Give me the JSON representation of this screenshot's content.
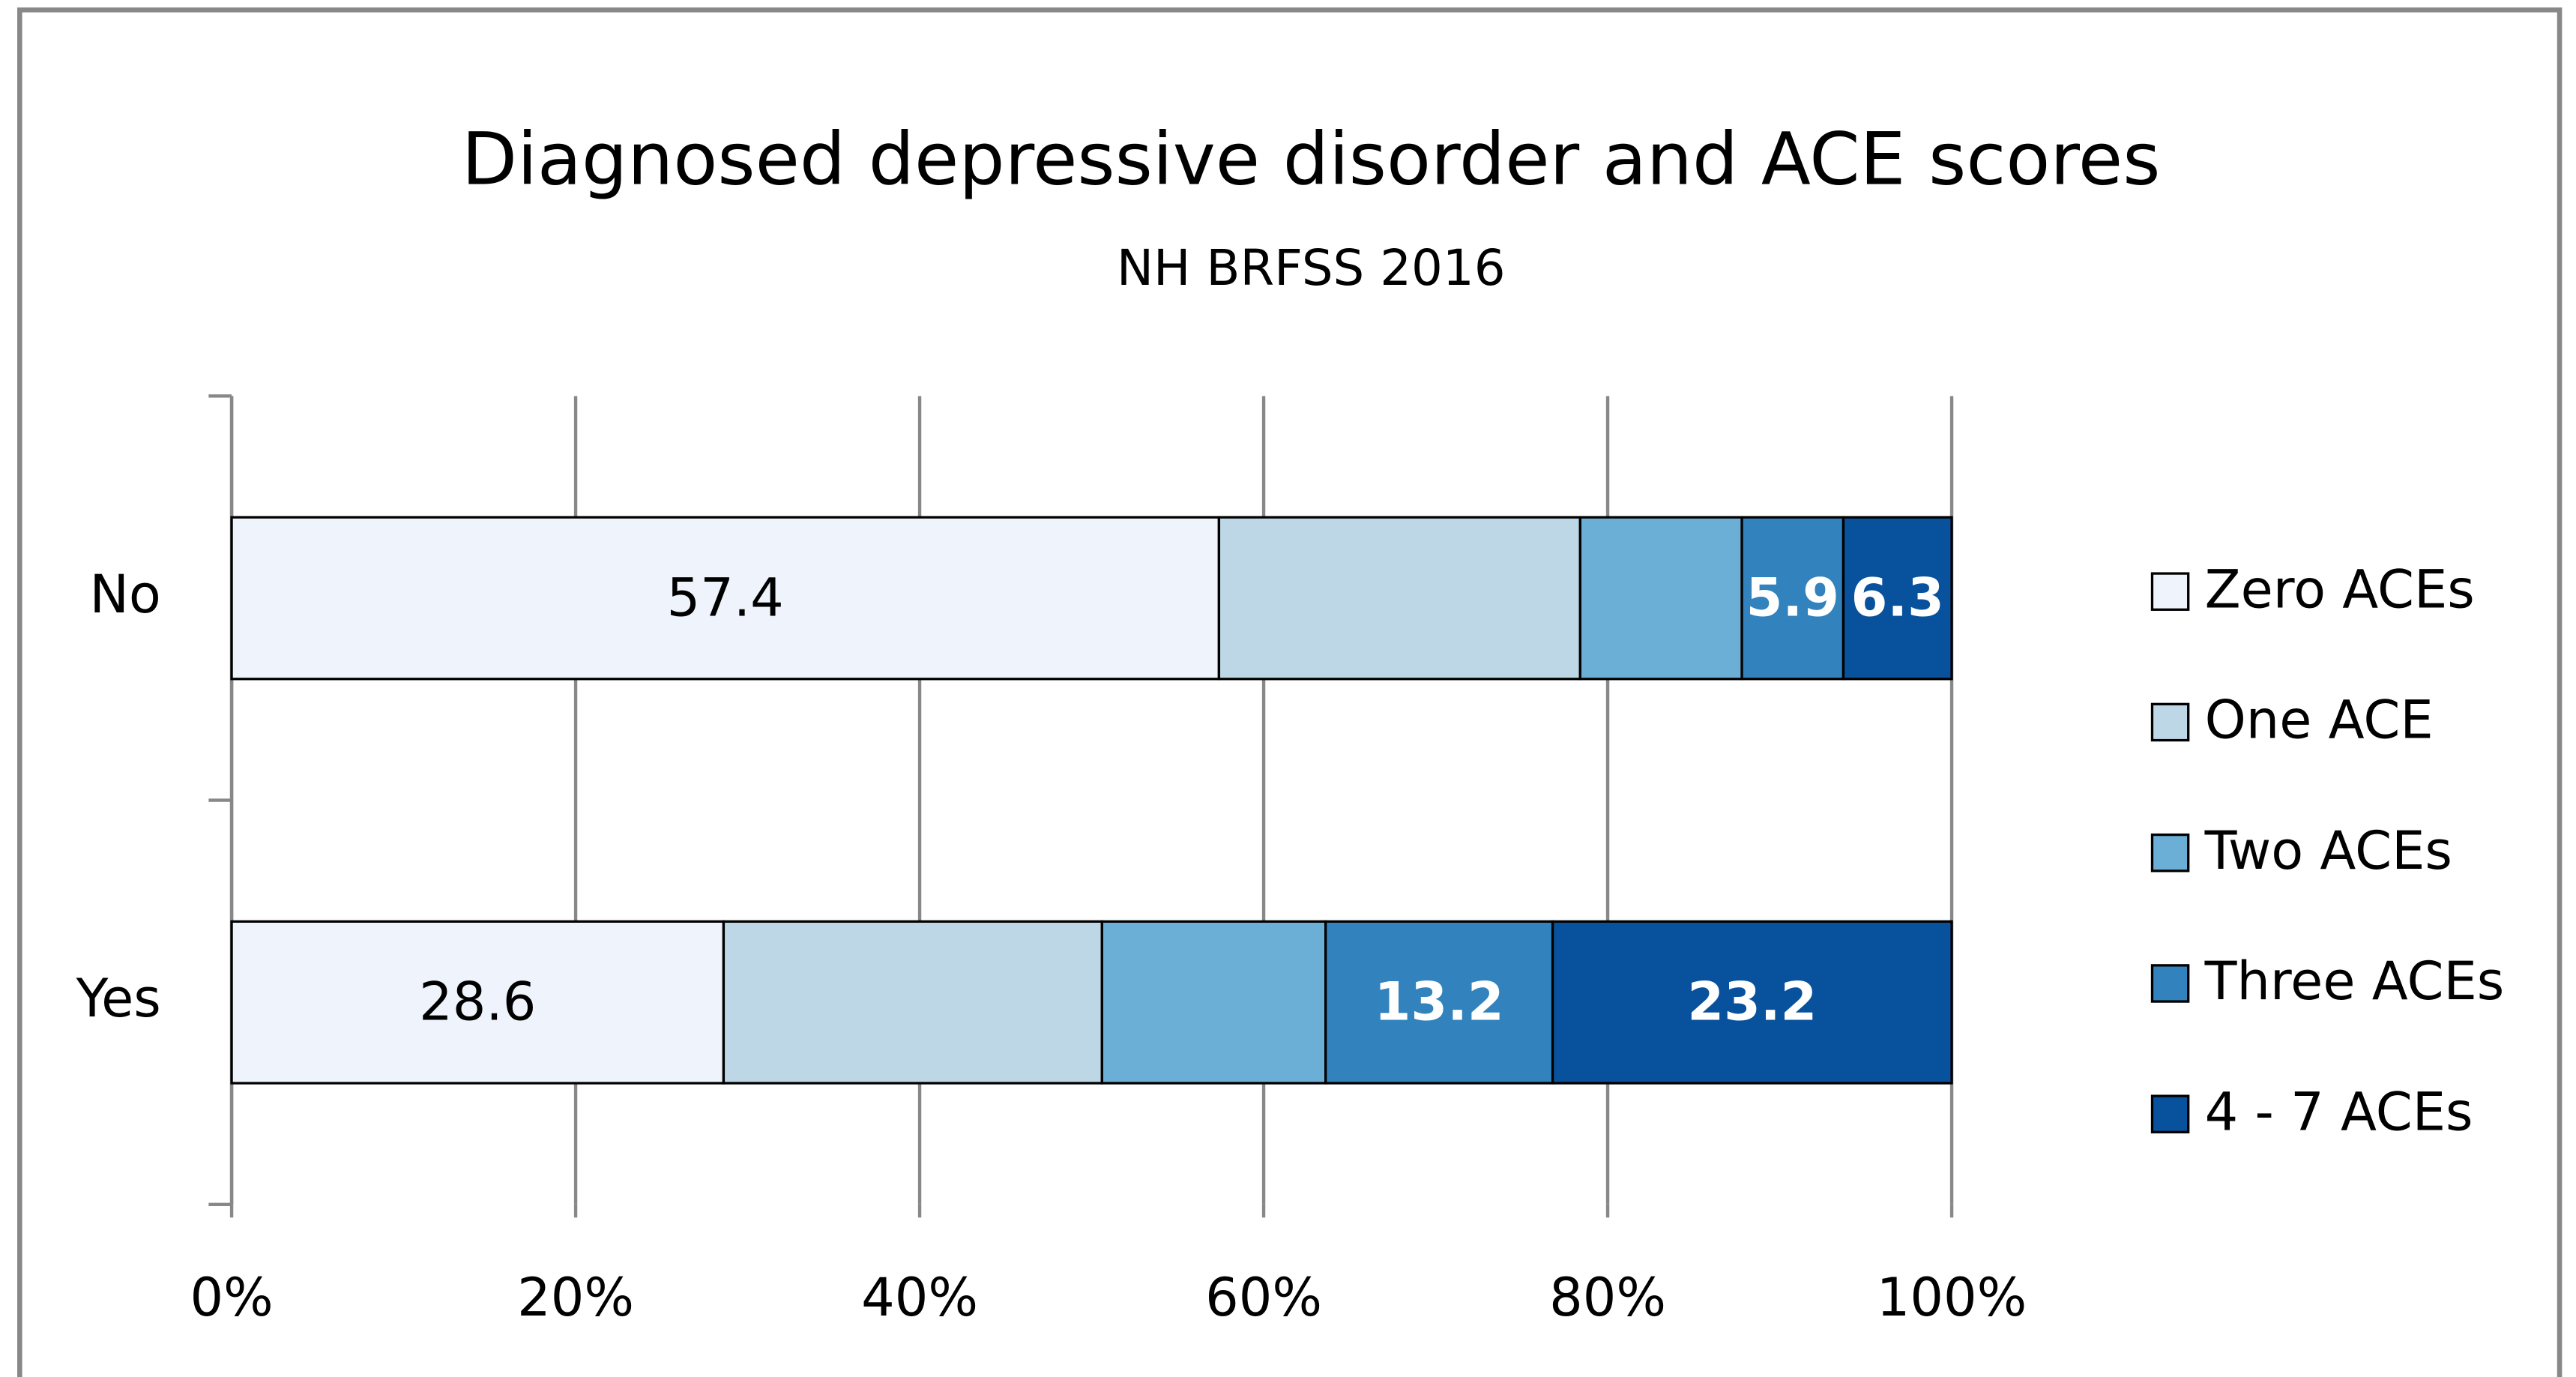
{
  "chart_data": {
    "type": "stacked_barh",
    "title": "Diagnosed depressive disorder and ACE scores",
    "subtitle": "NH BRFSS 2016",
    "categories": [
      "No",
      "Yes"
    ],
    "series": [
      {
        "name": "Zero ACEs",
        "color": "#eef3fc",
        "values": [
          57.4,
          28.6
        ],
        "show_labels": [
          true,
          true
        ],
        "label_color": "#000000"
      },
      {
        "name": "One ACE",
        "color": "#bdd7e7",
        "values": [
          21.0,
          22.0
        ],
        "show_labels": [
          false,
          false
        ],
        "label_color": "#000000"
      },
      {
        "name": "Two ACEs",
        "color": "#6baed6",
        "values": [
          9.4,
          13.0
        ],
        "show_labels": [
          false,
          false
        ],
        "label_color": "#000000"
      },
      {
        "name": "Three ACEs",
        "color": "#3182bd",
        "values": [
          5.9,
          13.2
        ],
        "show_labels": [
          true,
          true
        ],
        "label_color": "#ffffff"
      },
      {
        "name": "4 - 7 ACEs",
        "color": "#08519c",
        "values": [
          6.3,
          23.2
        ],
        "show_labels": [
          true,
          true
        ],
        "label_color": "#ffffff"
      }
    ],
    "xlim": [
      0,
      100
    ],
    "xticks": [
      {
        "value": 0,
        "label": "0%"
      },
      {
        "value": 20,
        "label": "20%"
      },
      {
        "value": 40,
        "label": "40%"
      },
      {
        "value": 60,
        "label": "60%"
      },
      {
        "value": 80,
        "label": "80%"
      },
      {
        "value": 100,
        "label": "100%"
      }
    ],
    "grid": true,
    "legend": "right"
  }
}
